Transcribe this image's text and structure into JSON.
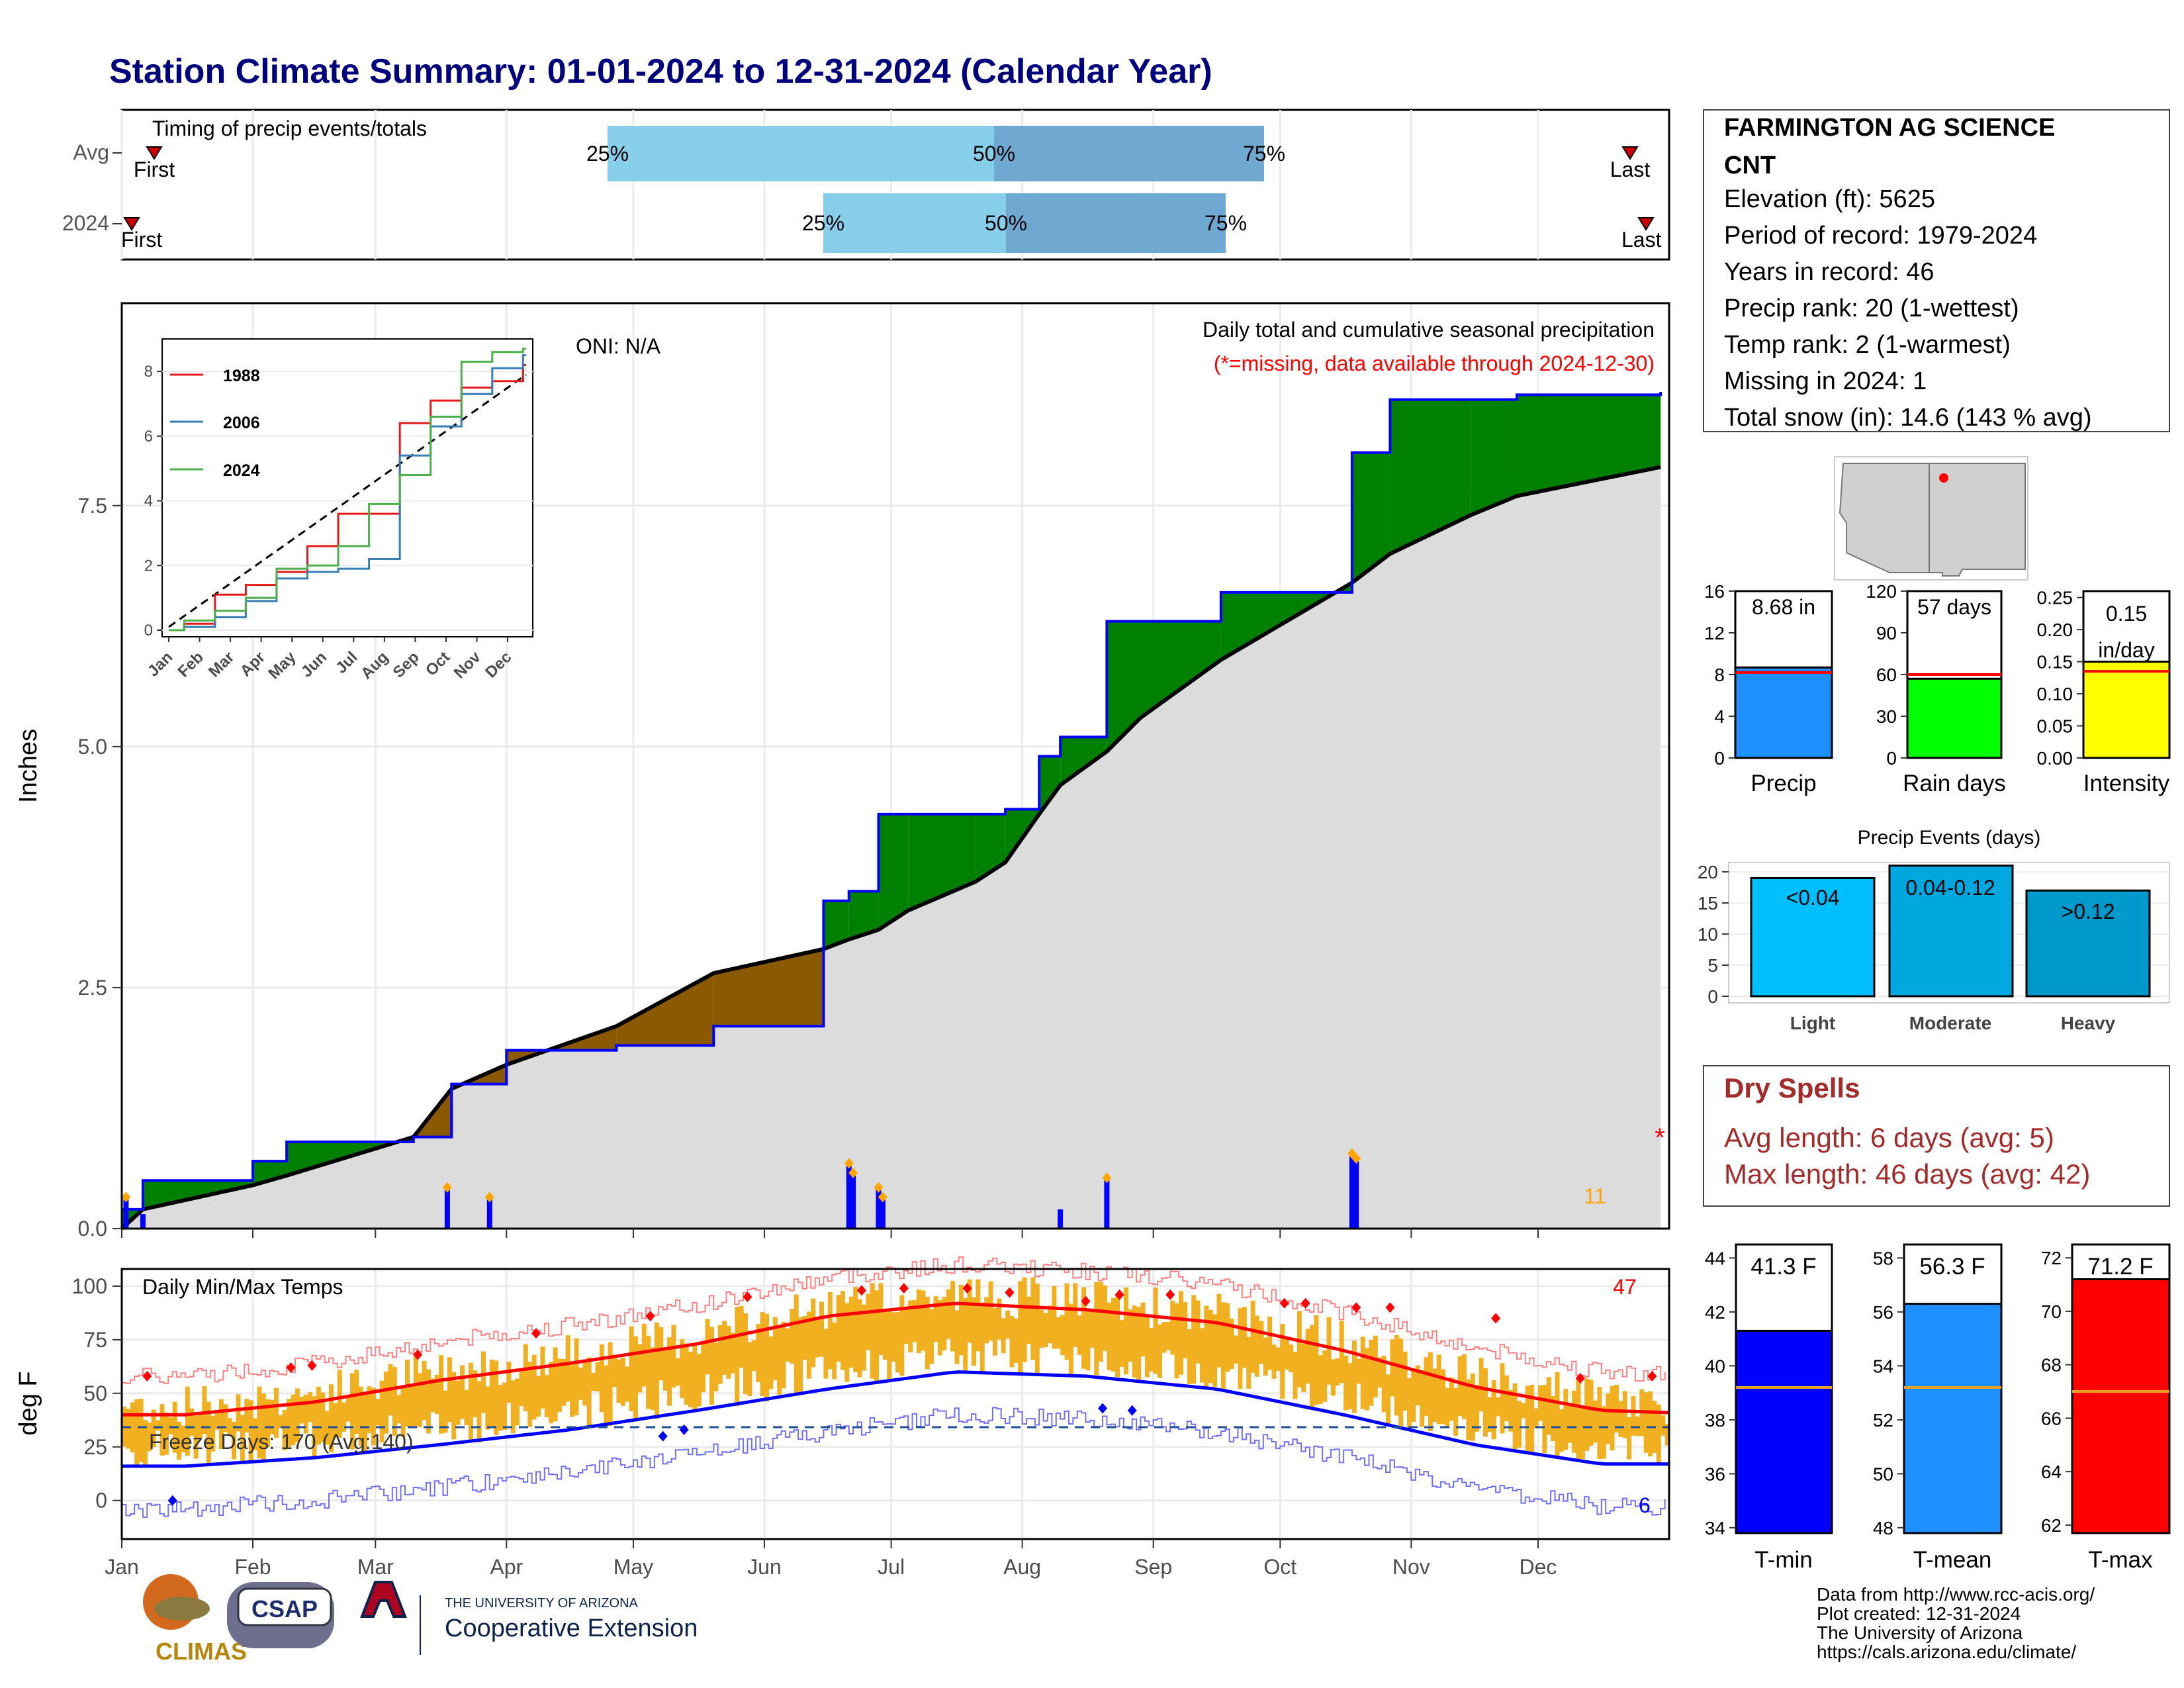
{
  "header": {
    "title": "Station Climate Summary: 01-01-2024 to 12-31-2024 (Calendar Year)"
  },
  "colors": {
    "title": "#00007f",
    "cum_wet": "#008000",
    "cum_dry": "#8b5a00",
    "avg_fill": "#dcdcdc",
    "daily_bar": "#0000ff",
    "q1": "#87ceeb",
    "q2": "#6fa8d0",
    "temp_bar": "#f0b020",
    "tmax": "#ff0000",
    "tmin": "#0000ff",
    "precip_bar": "#1e90ff",
    "raindays_bar": "#00ff00",
    "intensity_bar": "#ffff00",
    "dry_spell_text": "#a52a2a",
    "event_light": "#00bfff",
    "event_moderate": "#00a8e0",
    "event_heavy": "#0099cc",
    "tmean_bar": "#1e90ff",
    "tmax_bar": "#ff0000"
  },
  "timing": {
    "panel_label": "Timing of precip events/totals",
    "rows": [
      "Avg",
      "2024"
    ],
    "first_label": "First",
    "last_label": "Last",
    "avg": {
      "q25": "25%",
      "q50": "50%",
      "q75": "75%"
    },
    "y2024": {
      "q25": "25%",
      "q50": "50%",
      "q75": "75%"
    }
  },
  "precip_panel": {
    "ylabel": "Inches",
    "y_ticks": [
      "0.0",
      "2.5",
      "5.0",
      "7.5"
    ],
    "oni": "ONI: N/A",
    "title": "Daily total and cumulative seasonal precipitation",
    "missing_note": "(*=missing, data available through 2024-12-30)",
    "count_label": "11",
    "missing_marker": "*",
    "inset": {
      "y_ticks": [
        "0",
        "2",
        "4",
        "6",
        "8"
      ],
      "x_months": [
        "Jan",
        "Feb",
        "Mar",
        "Apr",
        "May",
        "Jun",
        "Jul",
        "Aug",
        "Sep",
        "Oct",
        "Nov",
        "Dec"
      ],
      "legend": [
        "1988",
        "2006",
        "2024"
      ]
    }
  },
  "temp_panel": {
    "ylabel": "deg F",
    "y_ticks": [
      "0",
      "25",
      "50",
      "75",
      "100"
    ],
    "label": "Daily Min/Max Temps",
    "hot_count": "47",
    "cold_count": "6",
    "freeze": "Freeze Days: 170 (Avg:140)",
    "months": [
      "Jan",
      "Feb",
      "Mar",
      "Apr",
      "May",
      "Jun",
      "Jul",
      "Aug",
      "Sep",
      "Oct",
      "Nov",
      "Dec"
    ]
  },
  "station": {
    "name_line1": "FARMINGTON AG SCIENCE",
    "name_line2": "CNT",
    "elevation": "Elevation (ft): 5625",
    "period": "Period of record: 1979-2024",
    "years": "Years in record: 46",
    "precip_rank": "Precip rank: 20 (1-wettest)",
    "temp_rank": "Temp rank: 2 (1-warmest)",
    "missing": "Missing in 2024: 1",
    "snow": "Total snow (in): 14.6 (143 % avg)"
  },
  "summary_bars": {
    "precip": {
      "label": "Precip",
      "value_text": "8.68 in",
      "ticks": [
        "0",
        "4",
        "8",
        "12",
        "16"
      ]
    },
    "raindays": {
      "label": "Rain days",
      "value_text": "57 days",
      "ticks": [
        "0",
        "30",
        "60",
        "90",
        "120"
      ]
    },
    "intensity": {
      "label": "Intensity",
      "value_text1": "0.15",
      "value_text2": "in/day",
      "ticks": [
        "0.00",
        "0.05",
        "0.10",
        "0.15",
        "0.20",
        "0.25"
      ]
    }
  },
  "precip_events": {
    "title": "Precip Events (days)",
    "ticks": [
      "0",
      "5",
      "10",
      "15",
      "20"
    ],
    "bars": [
      {
        "label": "Light",
        "inner": "<0.04"
      },
      {
        "label": "Moderate",
        "inner": "0.04-0.12"
      },
      {
        "label": "Heavy",
        "inner": ">0.12"
      }
    ]
  },
  "dry_spells": {
    "title": "Dry Spells",
    "avg": "Avg length: 6 days (avg: 5)",
    "max": "Max length: 46 days (avg: 42)"
  },
  "temp_bars": {
    "tmin": {
      "label": "T-min",
      "value_text": "41.3 F",
      "ticks": [
        "34",
        "36",
        "38",
        "40",
        "42",
        "44"
      ]
    },
    "tmean": {
      "label": "T-mean",
      "value_text": "56.3 F",
      "ticks": [
        "48",
        "50",
        "52",
        "54",
        "56",
        "58"
      ]
    },
    "tmax": {
      "label": "T-max",
      "value_text": "71.2 F",
      "ticks": [
        "62",
        "64",
        "66",
        "68",
        "70",
        "72"
      ]
    }
  },
  "footer": {
    "climas": "CLIMAS",
    "csap": "CSAP",
    "ua_small": "THE UNIVERSITY OF ARIZONA",
    "ua_big": "Cooperative Extension",
    "src1": "Data from http://www.rcc-acis.org/",
    "src2": "Plot created: 12-31-2024",
    "src3": "The University of Arizona",
    "src4": "https://cals.arizona.edu/climate/"
  },
  "chart_data": [
    {
      "type": "bar",
      "title": "Timing of precip events/totals",
      "categories": [
        "Avg",
        "2024"
      ],
      "series": [
        {
          "name": "25%",
          "values": [
            "2024-04-26",
            "2024-06-15"
          ]
        },
        {
          "name": "50%",
          "values": [
            "2024-07-24",
            "2024-07-27"
          ]
        },
        {
          "name": "75%",
          "values": [
            "2024-08-31",
            "2024-08-21"
          ]
        }
      ]
    },
    {
      "type": "area",
      "title": "Daily total and cumulative seasonal precipitation",
      "ylabel": "Inches",
      "ylim": [
        0,
        9.6
      ],
      "x": [
        "2024-01-01",
        "2024-01-06",
        "2024-02-01",
        "2024-02-09",
        "2024-03-10",
        "2024-03-19",
        "2024-04-01",
        "2024-04-27",
        "2024-05-20",
        "2024-06-15",
        "2024-06-21",
        "2024-06-28",
        "2024-07-05",
        "2024-07-21",
        "2024-07-28",
        "2024-08-05",
        "2024-08-10",
        "2024-08-21",
        "2024-08-29",
        "2024-09-17",
        "2024-10-18",
        "2024-10-27",
        "2024-11-15",
        "2024-11-26",
        "2024-12-30"
      ],
      "series": [
        {
          "name": "2024",
          "values": [
            0.2,
            0.5,
            0.7,
            0.9,
            0.95,
            1.5,
            1.85,
            1.9,
            2.1,
            3.4,
            3.5,
            4.3,
            4.3,
            4.3,
            4.35,
            4.9,
            5.1,
            6.3,
            6.3,
            6.6,
            8.05,
            8.6,
            8.6,
            8.65,
            8.68
          ]
        },
        {
          "name": "Average",
          "values": [
            0.0,
            0.2,
            0.45,
            0.55,
            0.95,
            1.45,
            1.7,
            2.1,
            2.65,
            2.9,
            3.0,
            3.1,
            3.3,
            3.6,
            3.8,
            4.3,
            4.6,
            4.95,
            5.3,
            5.9,
            6.7,
            7.0,
            7.4,
            7.6,
            7.9
          ]
        }
      ],
      "daily_events": [
        {
          "x": "2024-01-02",
          "y": 0.3
        },
        {
          "x": "2024-01-06",
          "y": 0.15
        },
        {
          "x": "2024-03-18",
          "y": 0.4
        },
        {
          "x": "2024-03-28",
          "y": 0.3
        },
        {
          "x": "2024-06-21",
          "y": 0.65
        },
        {
          "x": "2024-06-22",
          "y": 0.55
        },
        {
          "x": "2024-06-28",
          "y": 0.4
        },
        {
          "x": "2024-06-29",
          "y": 0.3
        },
        {
          "x": "2024-08-10",
          "y": 0.2
        },
        {
          "x": "2024-08-21",
          "y": 0.5
        },
        {
          "x": "2024-10-18",
          "y": 0.75
        },
        {
          "x": "2024-10-19",
          "y": 0.7
        }
      ]
    },
    {
      "type": "line",
      "title": "Inset cumulative precip",
      "ylim": [
        0,
        8.8
      ],
      "x": [
        "Jan",
        "Feb",
        "Mar",
        "Apr",
        "May",
        "Jun",
        "Jul",
        "Aug",
        "Sep",
        "Oct",
        "Nov",
        "Dec"
      ],
      "series": [
        {
          "name": "1988",
          "values": [
            0.2,
            1.1,
            1.4,
            1.8,
            2.6,
            3.6,
            3.6,
            6.4,
            7.1,
            7.5,
            7.7,
            8.2
          ]
        },
        {
          "name": "2006",
          "values": [
            0.1,
            0.4,
            0.9,
            1.6,
            1.8,
            1.9,
            2.2,
            5.4,
            6.3,
            7.3,
            8.1,
            8.5
          ]
        },
        {
          "name": "2024",
          "values": [
            0.3,
            0.6,
            1.0,
            1.9,
            2.0,
            2.6,
            3.9,
            4.8,
            6.6,
            8.3,
            8.6,
            8.7
          ]
        }
      ]
    },
    {
      "type": "line",
      "title": "Daily Min/Max Temps",
      "ylabel": "deg F",
      "ylim": [
        -18,
        108
      ],
      "x": [
        "Jan",
        "Feb",
        "Mar",
        "Apr",
        "May",
        "Jun",
        "Jul",
        "Aug",
        "Sep",
        "Oct",
        "Nov",
        "Dec",
        "Dec31"
      ],
      "series": [
        {
          "name": "Avg Max",
          "values": [
            40,
            46,
            56,
            64,
            73,
            86,
            92,
            89,
            83,
            70,
            53,
            42,
            40
          ]
        },
        {
          "name": "Avg Min",
          "values": [
            16,
            20,
            26,
            33,
            42,
            52,
            60,
            58,
            52,
            40,
            26,
            17,
            17
          ]
        }
      ]
    },
    {
      "type": "bar",
      "title": "Precip Events (days)",
      "categories": [
        "Light",
        "Moderate",
        "Heavy"
      ],
      "values": [
        19,
        21,
        17
      ],
      "ylim": [
        0,
        21
      ]
    },
    {
      "type": "bar",
      "categories": [
        "Precip",
        "Rain days",
        "Intensity"
      ],
      "series": [
        {
          "name": "2024",
          "values": [
            8.68,
            57,
            0.15
          ]
        },
        {
          "name": "Average",
          "values": [
            8.2,
            60,
            0.135
          ]
        }
      ]
    },
    {
      "type": "bar",
      "categories": [
        "T-min",
        "T-mean",
        "T-max"
      ],
      "series": [
        {
          "name": "2024",
          "values": [
            41.3,
            56.3,
            71.2
          ]
        },
        {
          "name": "Average",
          "values": [
            39.2,
            53.2,
            67.0
          ]
        }
      ]
    }
  ]
}
